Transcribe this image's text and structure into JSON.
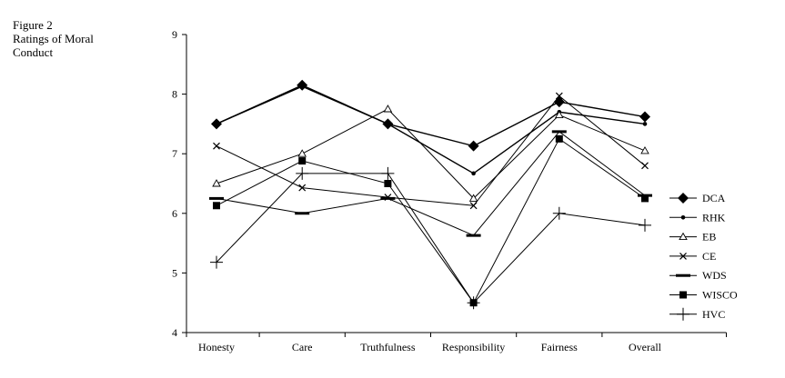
{
  "figure": {
    "label": "Figure 2",
    "caption_lines": [
      "Ratings of Moral",
      "Conduct"
    ]
  },
  "chart_data": {
    "type": "line",
    "title": "Ratings of Moral Conduct",
    "xlabel": "",
    "ylabel": "",
    "categories": [
      "Honesty",
      "Care",
      "Truthfulness",
      "Responsibility",
      "Fairness",
      "Overall"
    ],
    "ylim": [
      4,
      9
    ],
    "yticks": [
      4,
      5,
      6,
      7,
      8,
      9
    ],
    "grid": false,
    "legend_position": "right",
    "series": [
      {
        "name": "DCA",
        "marker": "diamond",
        "values": [
          7.5,
          8.15,
          7.5,
          7.13,
          7.87,
          7.62
        ]
      },
      {
        "name": "RHK",
        "marker": "dot",
        "values": [
          7.5,
          8.13,
          7.5,
          6.67,
          7.7,
          7.5
        ]
      },
      {
        "name": "EB",
        "marker": "open-triangle",
        "values": [
          6.5,
          7.0,
          7.75,
          6.25,
          7.65,
          7.05
        ]
      },
      {
        "name": "CE",
        "marker": "x",
        "values": [
          7.13,
          6.43,
          6.27,
          6.13,
          7.97,
          6.8
        ]
      },
      {
        "name": "WDS",
        "marker": "dash",
        "values": [
          6.25,
          6.0,
          6.25,
          5.63,
          7.37,
          6.3
        ]
      },
      {
        "name": "WISCO",
        "marker": "square",
        "values": [
          6.13,
          6.88,
          6.5,
          4.5,
          7.25,
          6.25
        ]
      },
      {
        "name": "HVC",
        "marker": "plus",
        "values": [
          5.18,
          6.67,
          6.67,
          4.5,
          6.0,
          5.8
        ]
      }
    ]
  }
}
